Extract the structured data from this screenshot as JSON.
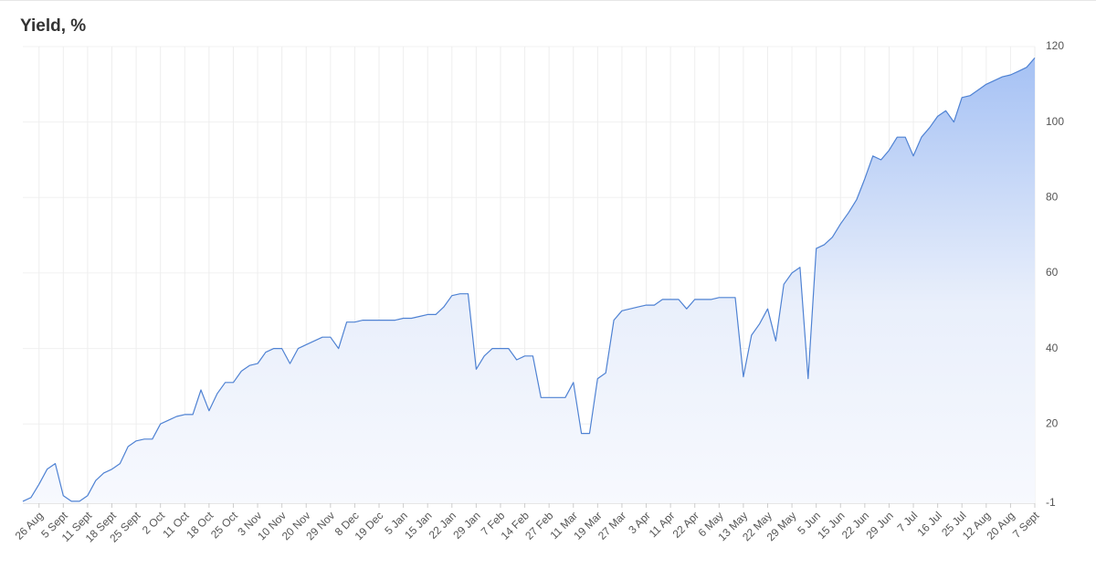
{
  "chart_data": {
    "type": "area",
    "title": "Yield, %",
    "categories": [
      null,
      null,
      "26 Aug",
      null,
      null,
      "5 Sept",
      null,
      null,
      "11 Sept",
      null,
      null,
      "18 Sept",
      null,
      null,
      "25 Sept",
      null,
      null,
      "2 Oct",
      null,
      null,
      "11 Oct",
      null,
      null,
      "18 Oct",
      null,
      null,
      "25 Oct",
      null,
      null,
      "3 Nov",
      null,
      null,
      "10 Nov",
      null,
      null,
      "20 Nov",
      null,
      null,
      "29 Nov",
      null,
      null,
      "8 Dec",
      null,
      null,
      "19 Dec",
      null,
      null,
      "5 Jan",
      null,
      null,
      "15 Jan",
      null,
      null,
      "22 Jan",
      null,
      null,
      "29 Jan",
      null,
      null,
      "7 Feb",
      null,
      null,
      "14 Feb",
      null,
      null,
      "27 Feb",
      null,
      null,
      "11 Mar",
      null,
      null,
      "19 Mar",
      null,
      null,
      "27 Mar",
      null,
      null,
      "3 Apr",
      null,
      null,
      "11 Apr",
      null,
      null,
      "22 Apr",
      null,
      null,
      "6 May",
      null,
      null,
      "13 May",
      null,
      null,
      "22 May",
      null,
      null,
      "29 May",
      null,
      null,
      "5 Jun",
      null,
      null,
      "15 Jun",
      null,
      null,
      "22 Jun",
      null,
      null,
      "29 Jun",
      null,
      null,
      "7 Jul",
      null,
      null,
      "16 Jul",
      null,
      null,
      "25 Jul",
      null,
      null,
      "12 Aug",
      null,
      null,
      "20 Aug",
      null,
      null,
      "7 Sept"
    ],
    "values": [
      -0.5,
      0.5,
      4,
      8,
      9.5,
      1,
      -0.5,
      -0.5,
      1,
      5,
      7,
      8,
      9.5,
      14,
      15.5,
      16,
      16,
      20,
      21,
      22,
      22.5,
      22.5,
      29,
      23.5,
      28,
      31,
      31,
      34,
      35.5,
      36,
      39,
      40,
      40,
      36,
      40,
      41,
      42,
      43,
      43,
      40,
      47,
      47,
      47.5,
      47.5,
      47.5,
      47.5,
      47.5,
      48,
      48,
      48.5,
      49,
      49,
      51,
      54,
      54.5,
      54.5,
      34.5,
      38,
      40,
      40,
      40,
      37,
      38,
      38,
      27,
      27,
      27,
      27,
      31,
      17.5,
      17.5,
      32,
      33.5,
      47.5,
      50,
      50.5,
      51,
      51.5,
      51.5,
      53,
      53,
      53,
      50.5,
      53,
      53,
      53,
      53.5,
      53.5,
      53.5,
      32.5,
      43.5,
      46.5,
      50.5,
      42,
      57,
      60,
      61.5,
      32,
      66.5,
      67.5,
      69.5,
      73,
      76,
      79.5,
      85,
      91,
      90,
      92.5,
      96,
      96,
      91,
      96,
      98.5,
      101.5,
      103,
      100,
      106.5,
      107,
      108.5,
      110,
      111,
      112,
      112.5,
      113.5,
      114.5,
      117
    ],
    "color": "#4f82d3",
    "ylim": [
      -1,
      120
    ],
    "yticks": [
      -1,
      20,
      40,
      60,
      80,
      100,
      120
    ],
    "grid": true
  }
}
